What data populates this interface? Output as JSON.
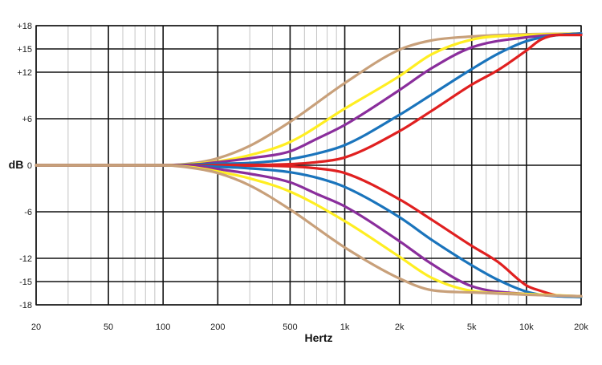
{
  "chart_data": {
    "type": "line",
    "title": "",
    "xlabel": "Hertz",
    "ylabel": "dB",
    "x_scale": "log",
    "xlim": [
      20,
      20000
    ],
    "ylim": [
      -18,
      18
    ],
    "grid": true,
    "legend": "none",
    "x_ticks": [
      {
        "value": 20,
        "label": "20"
      },
      {
        "value": 50,
        "label": "50"
      },
      {
        "value": 100,
        "label": "100"
      },
      {
        "value": 200,
        "label": "200"
      },
      {
        "value": 500,
        "label": "500"
      },
      {
        "value": 1000,
        "label": "1k"
      },
      {
        "value": 2000,
        "label": "2k"
      },
      {
        "value": 5000,
        "label": "5k"
      },
      {
        "value": 10000,
        "label": "10k"
      },
      {
        "value": 20000,
        "label": "20k"
      }
    ],
    "y_ticks": [
      {
        "value": 18,
        "label": "+18"
      },
      {
        "value": 15,
        "label": "+15"
      },
      {
        "value": 12,
        "label": "+12"
      },
      {
        "value": 6,
        "label": "+6"
      },
      {
        "value": 0,
        "label": "0"
      },
      {
        "value": -6,
        "label": "-6"
      },
      {
        "value": -12,
        "label": "-12"
      },
      {
        "value": -15,
        "label": "-15"
      },
      {
        "value": -18,
        "label": "-18"
      }
    ],
    "series": [
      {
        "color": "#c8a07a",
        "x": [
          20,
          100,
          150,
          200,
          300,
          500,
          1000,
          2000,
          3000,
          5000,
          10000,
          20000
        ],
        "y": [
          0,
          0,
          0.3,
          0.9,
          2.5,
          5.6,
          10.6,
          14.9,
          16.1,
          16.6,
          16.9,
          17.0
        ]
      },
      {
        "color": "#ffee22",
        "x": [
          20,
          100,
          150,
          200,
          300,
          500,
          1000,
          2000,
          3000,
          5000,
          10000,
          20000
        ],
        "y": [
          0,
          0,
          0.2,
          0.5,
          1.3,
          3.0,
          7.3,
          11.5,
          14.3,
          16.2,
          16.8,
          17.0
        ]
      },
      {
        "color": "#8a2e9c",
        "x": [
          20,
          100,
          150,
          200,
          300,
          500,
          700,
          1000,
          2000,
          3000,
          5000,
          10000,
          20000
        ],
        "y": [
          0,
          0,
          0.1,
          0.4,
          0.9,
          1.8,
          3.4,
          5.2,
          9.7,
          12.5,
          15.2,
          16.5,
          17.0
        ]
      },
      {
        "color": "#1a74bc",
        "x": [
          20,
          100,
          200,
          300,
          500,
          700,
          1000,
          2000,
          3000,
          5000,
          7000,
          10000,
          15000,
          20000
        ],
        "y": [
          0,
          0,
          0.2,
          0.3,
          0.8,
          1.5,
          2.6,
          6.5,
          9.1,
          12.4,
          14.4,
          16.0,
          16.8,
          17.0
        ]
      },
      {
        "color": "#e02020",
        "x": [
          20,
          100,
          300,
          500,
          700,
          1000,
          2000,
          3000,
          5000,
          7000,
          10000,
          12000,
          15000,
          20000
        ],
        "y": [
          0,
          0,
          0.05,
          0.15,
          0.4,
          1.0,
          4.4,
          7.0,
          10.4,
          12.3,
          14.8,
          16.2,
          16.8,
          16.8
        ]
      },
      {
        "color": "#e02020",
        "x": [
          20,
          100,
          300,
          500,
          700,
          1000,
          2000,
          3000,
          5000,
          7000,
          10000,
          12000,
          15000,
          20000
        ],
        "y": [
          0,
          0,
          -0.05,
          -0.15,
          -0.4,
          -1.0,
          -4.4,
          -7.0,
          -10.4,
          -12.5,
          -15.5,
          -16.2,
          -16.8,
          -16.9
        ]
      },
      {
        "color": "#1a74bc",
        "x": [
          20,
          100,
          200,
          300,
          500,
          700,
          1000,
          2000,
          3000,
          5000,
          7000,
          10000,
          12000,
          15000,
          20000
        ],
        "y": [
          0,
          0,
          -0.2,
          -0.4,
          -0.9,
          -1.6,
          -2.8,
          -6.7,
          -9.6,
          -12.9,
          -14.8,
          -16.3,
          -16.7,
          -16.9,
          -17.0
        ]
      },
      {
        "color": "#8a2e9c",
        "x": [
          20,
          100,
          150,
          200,
          300,
          500,
          700,
          1000,
          2000,
          3000,
          5000,
          10000,
          20000
        ],
        "y": [
          0,
          0,
          -0.1,
          -0.5,
          -1.1,
          -2.2,
          -3.7,
          -5.3,
          -9.8,
          -12.7,
          -15.6,
          -16.6,
          -16.9
        ]
      },
      {
        "color": "#ffee22",
        "x": [
          20,
          100,
          150,
          200,
          300,
          500,
          1000,
          2000,
          3000,
          5000,
          10000,
          20000
        ],
        "y": [
          0,
          0,
          -0.3,
          -0.8,
          -1.7,
          -3.4,
          -7.2,
          -11.8,
          -14.5,
          -16.2,
          -16.6,
          -16.9
        ]
      },
      {
        "color": "#c8a07a",
        "x": [
          20,
          100,
          150,
          200,
          300,
          500,
          1000,
          2000,
          3000,
          5000,
          10000,
          20000
        ],
        "y": [
          0,
          0,
          -0.4,
          -1.0,
          -2.6,
          -5.7,
          -10.6,
          -14.6,
          -16.1,
          -16.4,
          -16.7,
          -16.9
        ]
      }
    ]
  }
}
